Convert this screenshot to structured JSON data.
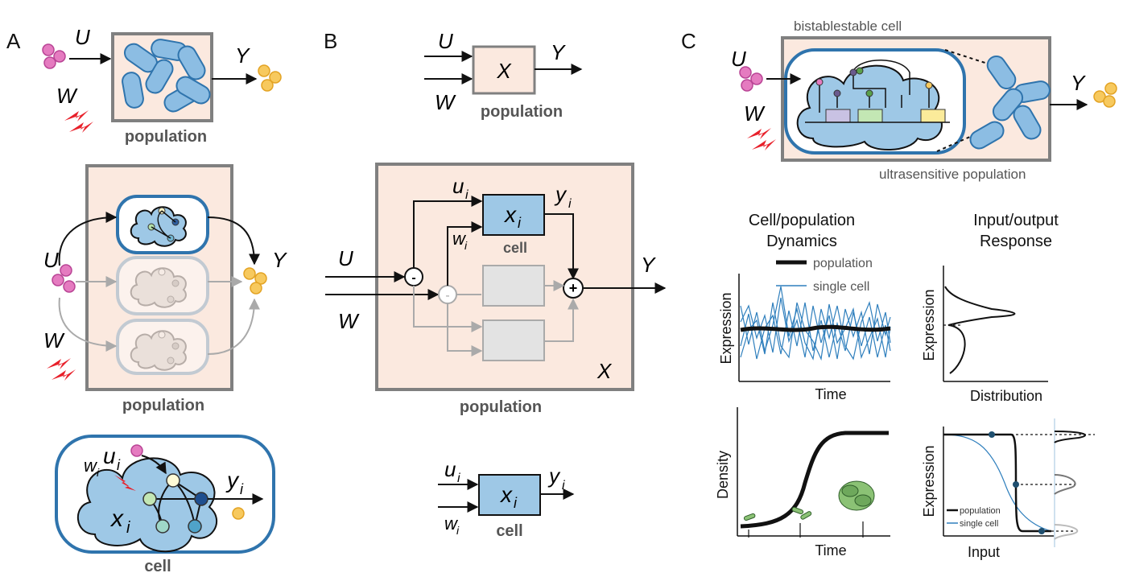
{
  "panels": {
    "a": "A",
    "b": "B",
    "c": "C"
  },
  "symbols": {
    "U": "U",
    "W": "W",
    "Y": "Y",
    "X": "X",
    "u_i": "u",
    "w_i": "w",
    "y_i": "y",
    "x_i": "x",
    "sub_i": "i",
    "minus": "-",
    "plus": "+"
  },
  "labels": {
    "population": "population",
    "cell": "cell",
    "bistable_cell": "bistablestable cell",
    "ultrasensitive_population": "ultrasensitive population"
  },
  "dynamics": {
    "title_line1": "Cell/population",
    "title_line2": "Dynamics",
    "legend_population": "population",
    "legend_single_cell": "single cell",
    "ylabel": "Expression",
    "xlabel": "Time"
  },
  "response": {
    "title_line1": "Input/output",
    "title_line2": "Response",
    "ylabel": "Expression",
    "xlabel": "Distribution"
  },
  "growth": {
    "ylabel": "Density",
    "xlabel": "Time"
  },
  "switch": {
    "ylabel": "Expression",
    "xlabel": "Input",
    "legend_population": "population",
    "legend_single_cell": "single cell"
  },
  "colors": {
    "cell_fill": "#9ec8e6",
    "cell_stroke": "#2f74ad",
    "box_fill": "#fbe9df",
    "box_stroke": "#808080",
    "input_molecule": "#e57bc0",
    "output_molecule": "#f7c95e",
    "noise_bolt": "#e8202a",
    "single_cell_trace": "#2f7fbd"
  }
}
